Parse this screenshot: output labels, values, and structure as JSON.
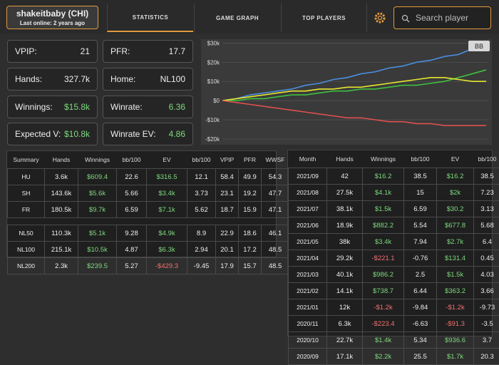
{
  "user": {
    "name": "shakeitbaby (CHI)",
    "last_online": "Last online: 2 years ago"
  },
  "tabs": [
    "STATISTICS",
    "GAME GRAPH",
    "TOP PLAYERS"
  ],
  "search_placeholder": "Search player",
  "stats": [
    {
      "label": "VPIP:",
      "value": "21"
    },
    {
      "label": "PFR:",
      "value": "17.7"
    },
    {
      "label": "Hands:",
      "value": "327.7k"
    },
    {
      "label": "Home:",
      "value": "NL100"
    },
    {
      "label": "Winnings:",
      "value": "$15.8k",
      "color": "#7ed87e"
    },
    {
      "label": "Winrate:",
      "value": "6.36",
      "color": "#7ed87e"
    },
    {
      "label": "Expected V:",
      "value": "$10.8k",
      "color": "#7ed87e"
    },
    {
      "label": "Winrate EV:",
      "value": "4.86",
      "color": "#7ed87e"
    }
  ],
  "chart_data": {
    "type": "line",
    "button": "BB",
    "ylim": [
      -23000,
      32000
    ],
    "yticks": [
      {
        "value": 30000,
        "label": "$30k"
      },
      {
        "value": 20000,
        "label": "$20k"
      },
      {
        "value": 10000,
        "label": "$10k"
      },
      {
        "value": 0,
        "label": "$0"
      },
      {
        "value": -10000,
        "label": "-$10k"
      },
      {
        "value": -20000,
        "label": "-$20k"
      }
    ],
    "grid": true,
    "series": [
      {
        "color": "#4a8fe0",
        "values": [
          0,
          1000,
          3000,
          4000,
          5000,
          6000,
          8000,
          9000,
          11000,
          12000,
          14000,
          15000,
          17000,
          18000,
          20000,
          21000,
          23000,
          24000,
          27000,
          28000
        ]
      },
      {
        "color": "#3ec03e",
        "values": [
          0,
          0,
          1000,
          1000,
          2000,
          3000,
          3000,
          4000,
          5000,
          5000,
          6000,
          6000,
          7000,
          8000,
          8000,
          9000,
          10000,
          12000,
          14000,
          16000
        ]
      },
      {
        "color": "#e8e830",
        "values": [
          0,
          1000,
          2000,
          3000,
          4000,
          5000,
          5000,
          6000,
          6000,
          7000,
          7000,
          8000,
          9000,
          10000,
          11000,
          12000,
          12000,
          11000,
          10000,
          10000
        ]
      },
      {
        "color": "#e05050",
        "values": [
          0,
          -1000,
          -2000,
          -3000,
          -4000,
          -5000,
          -6000,
          -7000,
          -8000,
          -9000,
          -9000,
          -10000,
          -11000,
          -11000,
          -12000,
          -12000,
          -13000,
          -13000,
          -13000,
          -13000
        ]
      }
    ]
  },
  "summary_table": {
    "columns": [
      "Summary",
      "Hands",
      "Winnings",
      "bb/100",
      "EV",
      "bb/100",
      "VPIP",
      "PFR",
      "WWSF"
    ],
    "groups": [
      [
        [
          "HU",
          "3.6k",
          "$609.4",
          "22.6",
          "$316.5",
          "12.1",
          "58.4",
          "49.9",
          "54.3"
        ],
        [
          "SH",
          "143.6k",
          "$5.6k",
          "5.66",
          "$3.4k",
          "3.73",
          "23.1",
          "19.2",
          "47.7"
        ],
        [
          "FR",
          "180.5k",
          "$9.7k",
          "6.59",
          "$7.1k",
          "5.62",
          "18.7",
          "15.9",
          "47.1"
        ]
      ],
      [
        [
          "NL50",
          "110.3k",
          "$5.1k",
          "9.28",
          "$4.9k",
          "8.9",
          "22.9",
          "18.6",
          "46.1"
        ],
        [
          "NL100",
          "215.1k",
          "$10.5k",
          "4.87",
          "$6.3k",
          "2.94",
          "20.1",
          "17.2",
          "48.5"
        ],
        [
          "NL200",
          "2.3k",
          "$239.5",
          "5.27",
          "-$429.3",
          "-9.45",
          "17.9",
          "15.7",
          "48.5"
        ]
      ]
    ]
  },
  "monthly_table": {
    "columns": [
      "Month",
      "Hands",
      "Winnings",
      "bb/100",
      "EV",
      "bb/100"
    ],
    "rows": [
      [
        "2021/09",
        "42",
        "$16.2",
        "38.5",
        "$16.2",
        "38.5"
      ],
      [
        "2021/08",
        "27.5k",
        "$4.1k",
        "15",
        "$2k",
        "7.23"
      ],
      [
        "2021/07",
        "38.1k",
        "$1.5k",
        "6.59",
        "$30.2",
        "3.13"
      ],
      [
        "2021/06",
        "18.9k",
        "$882.2",
        "5.54",
        "$677.8",
        "5.68"
      ],
      [
        "2021/05",
        "38k",
        "$3.4k",
        "7.94",
        "$2.7k",
        "6.4"
      ],
      [
        "2021/04",
        "29.2k",
        "-$221.1",
        "-0.76",
        "$131.4",
        "0.45"
      ],
      [
        "2021/03",
        "40.1k",
        "$986.2",
        "2.5",
        "$1.5k",
        "4.03"
      ],
      [
        "2021/02",
        "14.1k",
        "$738.7",
        "6.44",
        "$363.2",
        "3.66"
      ],
      [
        "2021/01",
        "12k",
        "-$1.2k",
        "-9.84",
        "-$1.2k",
        "-9.73"
      ],
      [
        "2020/11",
        "6.3k",
        "-$223.4",
        "-6.63",
        "-$91.3",
        "-3.5"
      ],
      [
        "2020/10",
        "22.7k",
        "$1.4k",
        "5.34",
        "$936.6",
        "3.7"
      ],
      [
        "2020/09",
        "17.1k",
        "$2.2k",
        "25.5",
        "$1.7k",
        "20.3"
      ]
    ]
  }
}
